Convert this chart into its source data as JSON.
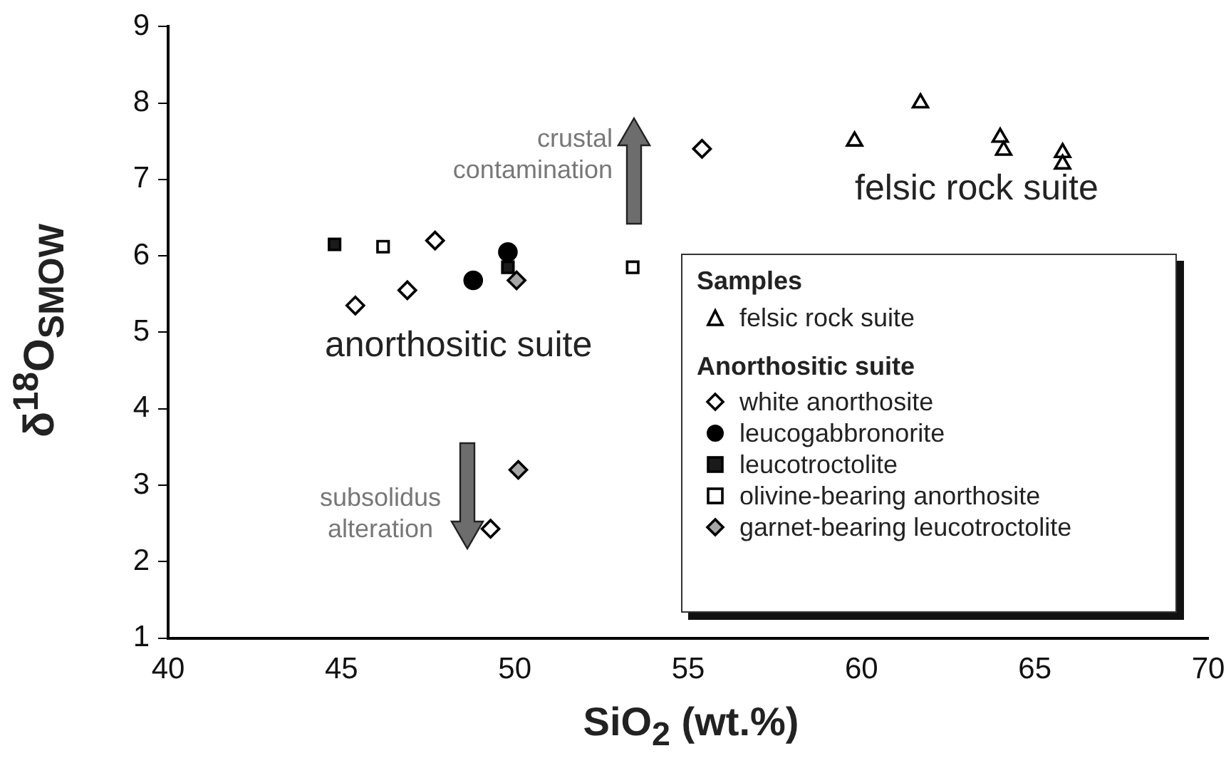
{
  "chart_data": {
    "type": "scatter",
    "xlabel": "SiO$_{2}$ (wt.%)",
    "ylabel": "δ$^{18}$O$_{SMOW}$",
    "xlim": [
      40,
      70
    ],
    "xticks": [
      40,
      45,
      50,
      55,
      60,
      65,
      70
    ],
    "ylim": [
      1,
      9
    ],
    "yticks": [
      1,
      2,
      3,
      4,
      5,
      6,
      7,
      8,
      9
    ],
    "grid": false,
    "legend": "bottom right",
    "legend_title": "Samples",
    "annotations": [
      "crustal contamination",
      "felsic rock suite",
      "anorthositic suite",
      "subsolidus alteration",
      "Anorthositic suite"
    ],
    "series": [
      {
        "name": "felsic rock suite",
        "color": "#ffffff",
        "marker": "triangle",
        "x": [
          59.8,
          61.7,
          64.0,
          64.1,
          65.8,
          65.8
        ],
        "values": [
          7.5,
          8.0,
          7.55,
          7.38,
          7.35,
          7.2
        ]
      },
      {
        "name": "white anorthosite",
        "color": "#ffffff",
        "marker": "diamond",
        "x": [
          55.4,
          47.7,
          45.4,
          46.9,
          49.3
        ],
        "values": [
          7.4,
          6.2,
          5.35,
          5.55,
          2.43
        ]
      },
      {
        "name": "leucogabbronorite",
        "color": "#000000",
        "marker": "circle",
        "x": [
          48.8,
          49.8
        ],
        "values": [
          5.68,
          6.05
        ]
      },
      {
        "name": "leucotroctolite",
        "color": "#1a1a1a",
        "marker": "square",
        "x": [
          44.8,
          49.8
        ],
        "values": [
          6.15,
          5.85
        ]
      },
      {
        "name": "olivine-bearing anorthosite",
        "color": "#ffffff",
        "marker": "square",
        "x": [
          46.2,
          53.4
        ],
        "values": [
          6.12,
          5.85
        ]
      },
      {
        "name": "garnet-bearing leucotroctolite",
        "color": "#a6a6a6",
        "marker": "diamond",
        "x": [
          50.05,
          50.1
        ],
        "values": [
          5.68,
          3.2
        ]
      }
    ]
  }
}
